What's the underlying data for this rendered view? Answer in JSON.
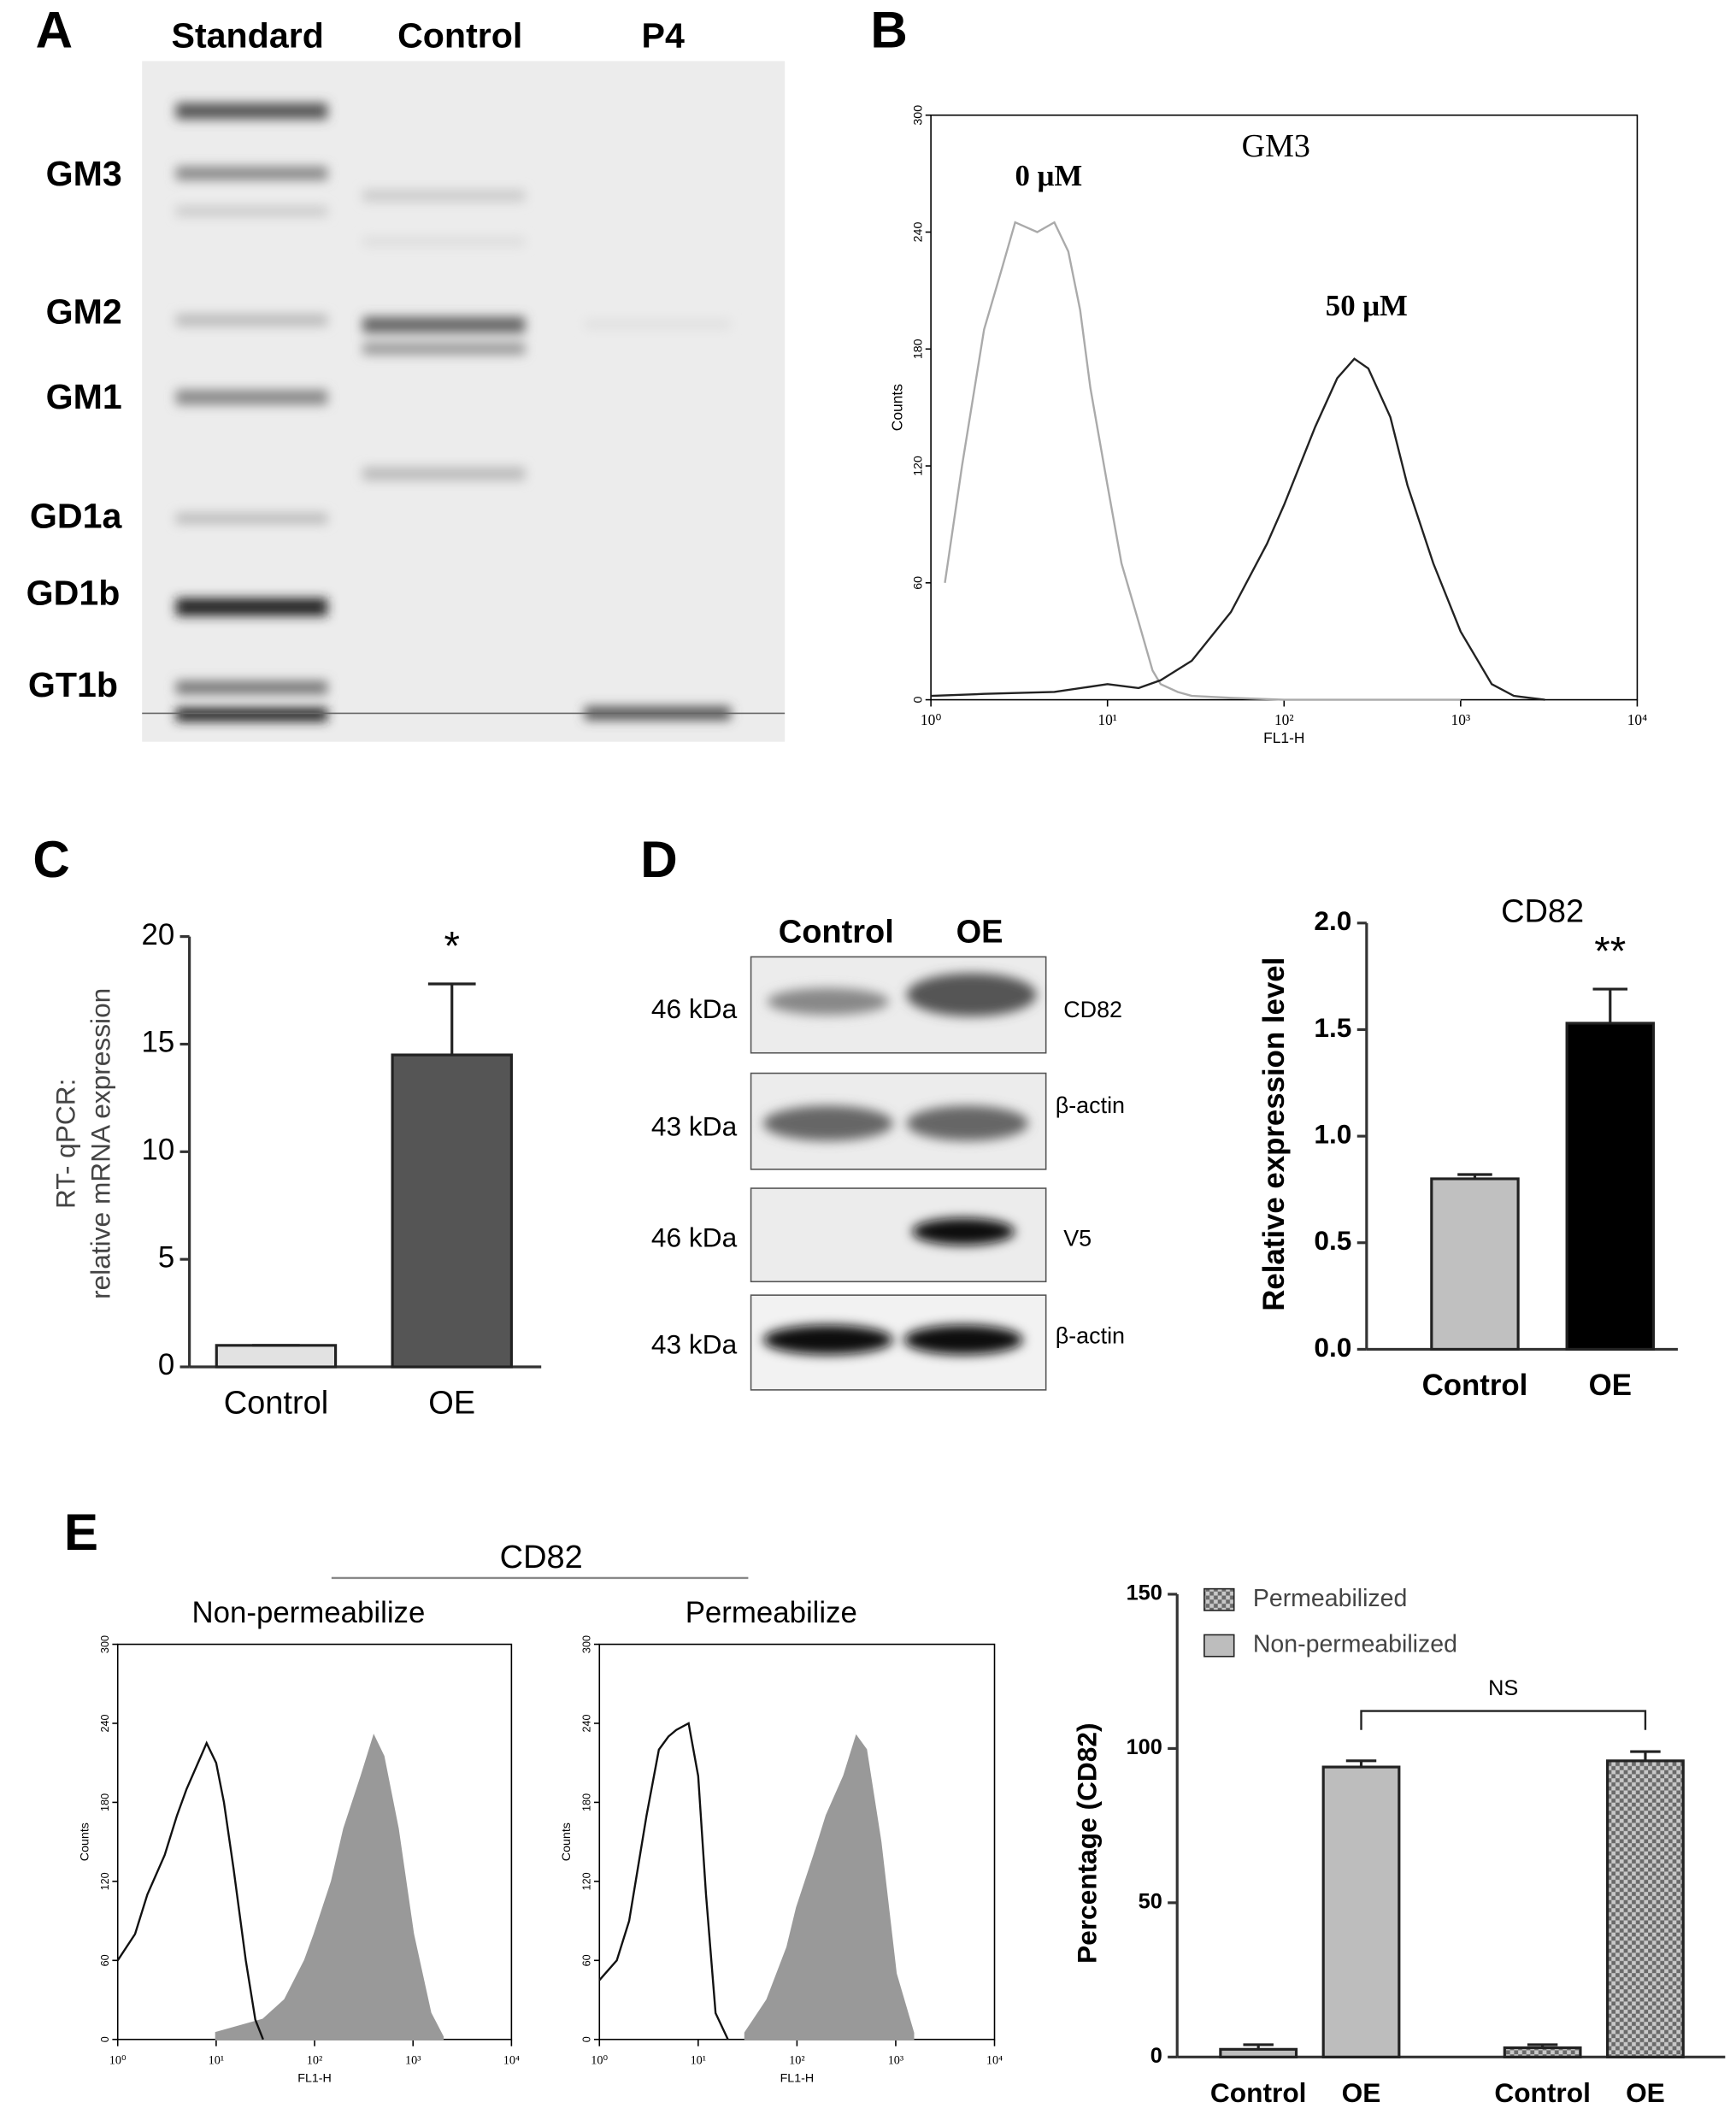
{
  "panel_labels": [
    "A",
    "B",
    "C",
    "D",
    "E"
  ],
  "gel": {
    "lanes": [
      "Standard",
      "Control",
      "P4"
    ],
    "bands": [
      "GM3",
      "GM2",
      "GM1",
      "GD1a",
      "GD1b",
      "GT1b"
    ]
  },
  "blot": {
    "columns": [
      "Control",
      "OE"
    ],
    "rows": [
      {
        "size": "46 kDa",
        "label": "CD82"
      },
      {
        "size": "43 kDa",
        "label": "β-actin"
      },
      {
        "size": "46 kDa",
        "label": "V5"
      },
      {
        "size": "43 kDa",
        "label": "β-actin"
      }
    ]
  },
  "flow_header": "CD82",
  "chart_data": [
    {
      "type": "flow",
      "title": "GM3",
      "x_label": "FL1-H",
      "y_label": "Counts",
      "xscale": "log",
      "xlim": [
        1,
        10000
      ],
      "ylim": [
        0,
        300
      ],
      "xticks": [
        {
          "value": 1,
          "label": "10⁰"
        },
        {
          "value": 10,
          "label": "10¹"
        },
        {
          "value": 100,
          "label": "10²"
        },
        {
          "value": 1000,
          "label": "10³"
        },
        {
          "value": 10000,
          "label": "10⁴"
        }
      ],
      "yticks": [
        0,
        60,
        120,
        180,
        240,
        300
      ],
      "series": [
        {
          "name": "0 μM",
          "color": "#aaaaaa",
          "fill": false,
          "x": [
            1.2,
            1.5,
            2,
            2.5,
            3,
            4,
            5,
            6,
            7,
            8,
            10,
            12,
            15,
            18,
            20,
            25,
            30,
            50,
            100,
            1000
          ],
          "values": [
            60,
            120,
            190,
            220,
            245,
            240,
            245,
            230,
            200,
            160,
            110,
            70,
            40,
            15,
            8,
            4,
            2,
            1,
            0,
            0
          ]
        },
        {
          "name": "50 μM",
          "color": "#222222",
          "fill": false,
          "x": [
            1,
            2,
            5,
            10,
            15,
            20,
            30,
            50,
            80,
            100,
            150,
            200,
            250,
            300,
            400,
            500,
            700,
            1000,
            1500,
            2000,
            3000
          ],
          "values": [
            2,
            3,
            4,
            8,
            6,
            10,
            20,
            45,
            80,
            100,
            140,
            165,
            175,
            170,
            145,
            110,
            70,
            35,
            8,
            2,
            0
          ]
        }
      ]
    },
    {
      "type": "bar",
      "y_label": [
        "RT- qPCR:",
        "relative mRNA expression"
      ],
      "annotation": "*",
      "categories": [
        "Control",
        "OE"
      ],
      "values": [
        1,
        14.5
      ],
      "errors": [
        0,
        3.3
      ],
      "colors": [
        "#e2e2e2",
        "#555555"
      ],
      "ylim": [
        0,
        20
      ],
      "yticks": [
        0,
        5,
        10,
        15,
        20
      ]
    },
    {
      "type": "bar",
      "title": "CD82",
      "y_label": [
        "Relative expression level"
      ],
      "annotation": "**",
      "categories": [
        "Control",
        "OE"
      ],
      "values": [
        0.8,
        1.53
      ],
      "errors": [
        0.02,
        0.16
      ],
      "colors": [
        "#c0c0c0",
        "#000000"
      ],
      "ylim": [
        0,
        2
      ],
      "yticks": [
        {
          "value": 0,
          "label": "0.0"
        },
        {
          "value": 0.5,
          "label": "0.5"
        },
        {
          "value": 1,
          "label": "1.0"
        },
        {
          "value": 1.5,
          "label": "1.5"
        },
        {
          "value": 2,
          "label": "2.0"
        }
      ]
    },
    {
      "type": "flow",
      "title": "Non-permeabilize",
      "x_label": "FL1-H",
      "y_label": "Counts",
      "xscale": "log",
      "xlim": [
        1,
        10000
      ],
      "ylim": [
        0,
        300
      ],
      "xticks": [
        {
          "value": 1,
          "label": "10⁰"
        },
        {
          "value": 10,
          "label": "10¹"
        },
        {
          "value": 100,
          "label": "10²"
        },
        {
          "value": 1000,
          "label": "10³"
        },
        {
          "value": 10000,
          "label": "10⁴"
        }
      ],
      "yticks": [
        0,
        60,
        120,
        180,
        240,
        300
      ],
      "series": [
        {
          "color": "#999999",
          "fill": true,
          "x": [
            10,
            30,
            50,
            80,
            100,
            150,
            200,
            300,
            400,
            500,
            700,
            1000,
            1500,
            2000
          ],
          "values": [
            5,
            15,
            30,
            60,
            80,
            120,
            160,
            200,
            230,
            215,
            160,
            80,
            20,
            2
          ]
        },
        {
          "color": "#111111",
          "fill": false,
          "x": [
            1,
            1.5,
            2,
            3,
            4,
            5,
            7,
            8,
            10,
            12,
            15,
            20,
            25,
            30
          ],
          "values": [
            60,
            80,
            110,
            140,
            170,
            190,
            215,
            225,
            210,
            180,
            130,
            60,
            15,
            0
          ]
        }
      ]
    },
    {
      "type": "flow",
      "title": "Permeabilize",
      "x_label": "FL1-H",
      "y_label": "Counts",
      "xscale": "log",
      "xlim": [
        1,
        10000
      ],
      "ylim": [
        0,
        300
      ],
      "xticks": [
        {
          "value": 1,
          "label": "10⁰"
        },
        {
          "value": 10,
          "label": "10¹"
        },
        {
          "value": 100,
          "label": "10²"
        },
        {
          "value": 1000,
          "label": "10³"
        },
        {
          "value": 10000,
          "label": "10⁴"
        }
      ],
      "yticks": [
        0,
        60,
        120,
        180,
        240,
        300
      ],
      "series": [
        {
          "color": "#999999",
          "fill": true,
          "x": [
            30,
            50,
            80,
            100,
            150,
            200,
            300,
            400,
            500,
            700,
            1000,
            1500
          ],
          "values": [
            5,
            30,
            70,
            100,
            140,
            170,
            200,
            230,
            220,
            150,
            50,
            5
          ]
        },
        {
          "color": "#111111",
          "fill": false,
          "x": [
            1,
            1.5,
            2,
            3,
            4,
            5,
            6,
            8,
            10,
            12,
            15,
            20
          ],
          "values": [
            45,
            60,
            90,
            170,
            220,
            230,
            235,
            240,
            200,
            110,
            20,
            0
          ]
        }
      ]
    },
    {
      "type": "bar",
      "y_label": [
        "Percentage (CD82)"
      ],
      "annotation": "NS",
      "legend": "top-left",
      "categories": [
        "Control",
        "OE",
        "Control",
        "OE"
      ],
      "series": [
        {
          "name": "Permeabilized",
          "color": "#9a9a9a",
          "pattern": "checker",
          "values": [
            null,
            null,
            3,
            96
          ],
          "errors": [
            null,
            null,
            1,
            3
          ]
        },
        {
          "name": "Non-permeabilized",
          "color": "#bdbdbd",
          "values": [
            2.5,
            94,
            null,
            null
          ],
          "errors": [
            1.5,
            2,
            null,
            null
          ]
        }
      ],
      "ylim": [
        0,
        150
      ],
      "yticks": [
        0,
        50,
        100,
        150
      ]
    }
  ]
}
